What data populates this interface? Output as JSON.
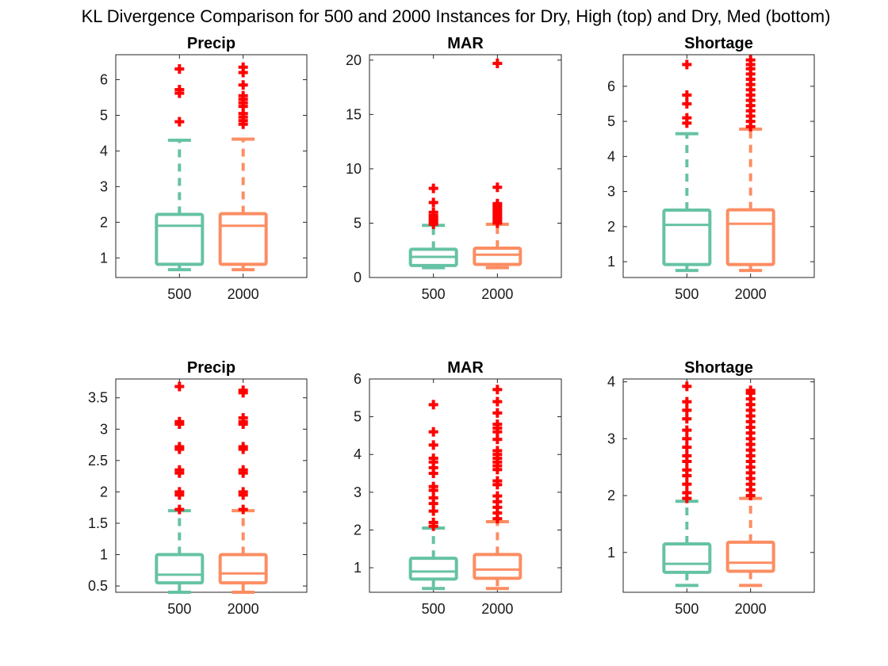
{
  "figure_title": "KL Divergence Comparison for 500 and 2000 Instances for Dry, High (top) and Dry, Med (bottom)",
  "colors": {
    "box_500": "#66c2a5",
    "box_2000": "#fc8d62",
    "outlier": "#ff0000",
    "axes": "#262626"
  },
  "chart_data": [
    {
      "type": "box",
      "title": "Precip",
      "categories": [
        "500",
        "2000"
      ],
      "ylim": [
        0.45,
        6.7
      ],
      "yticks": [
        1,
        2,
        3,
        4,
        5,
        6
      ],
      "series": [
        {
          "category": "500",
          "whisker_low": 0.67,
          "q1": 0.82,
          "median": 1.9,
          "q3": 2.22,
          "whisker_high": 4.3,
          "outliers": [
            4.82,
            5.62,
            5.72,
            6.3
          ]
        },
        {
          "category": "2000",
          "whisker_low": 0.67,
          "q1": 0.82,
          "median": 1.9,
          "q3": 2.24,
          "whisker_high": 4.33,
          "outliers": [
            4.75,
            4.85,
            4.95,
            5.05,
            5.25,
            5.35,
            5.45,
            5.55,
            5.85,
            6.2,
            6.35
          ]
        }
      ]
    },
    {
      "type": "box",
      "title": "MAR",
      "categories": [
        "500",
        "2000"
      ],
      "ylim": [
        0,
        20.5
      ],
      "yticks": [
        0,
        5,
        10,
        15,
        20
      ],
      "series": [
        {
          "category": "500",
          "whisker_low": 0.9,
          "q1": 1.1,
          "median": 1.9,
          "q3": 2.6,
          "whisker_high": 4.8,
          "outliers": [
            4.9,
            5.1,
            5.3,
            5.5,
            5.7,
            6.0,
            6.9,
            8.2
          ]
        },
        {
          "category": "2000",
          "whisker_low": 0.9,
          "q1": 1.2,
          "median": 2.1,
          "q3": 2.7,
          "whisker_high": 4.9,
          "outliers": [
            5.0,
            5.2,
            5.4,
            5.6,
            5.8,
            6.0,
            6.2,
            6.4,
            6.6,
            6.8,
            8.3,
            19.7
          ]
        }
      ]
    },
    {
      "type": "box",
      "title": "Shortage",
      "categories": [
        "500",
        "2000"
      ],
      "ylim": [
        0.55,
        6.9
      ],
      "yticks": [
        1,
        2,
        3,
        4,
        5,
        6
      ],
      "series": [
        {
          "category": "500",
          "whisker_low": 0.75,
          "q1": 0.92,
          "median": 2.05,
          "q3": 2.47,
          "whisker_high": 4.65,
          "outliers": [
            4.95,
            5.1,
            5.5,
            5.75,
            6.62
          ]
        },
        {
          "category": "2000",
          "whisker_low": 0.75,
          "q1": 0.92,
          "median": 2.08,
          "q3": 2.48,
          "whisker_high": 4.78,
          "outliers": [
            4.85,
            5.0,
            5.15,
            5.3,
            5.45,
            5.6,
            5.75,
            5.9,
            6.05,
            6.2,
            6.35,
            6.5,
            6.62,
            6.75
          ]
        }
      ]
    },
    {
      "type": "box",
      "title": "Precip",
      "categories": [
        "500",
        "2000"
      ],
      "ylim": [
        0.4,
        3.8
      ],
      "yticks": [
        0.5,
        1,
        1.5,
        2,
        2.5,
        3,
        3.5
      ],
      "series": [
        {
          "category": "500",
          "whisker_low": 0.4,
          "q1": 0.55,
          "median": 0.68,
          "q3": 1.0,
          "whisker_high": 1.7,
          "outliers": [
            1.72,
            1.95,
            2.0,
            2.3,
            2.35,
            2.68,
            2.72,
            3.08,
            3.12,
            3.68
          ]
        },
        {
          "category": "2000",
          "whisker_low": 0.4,
          "q1": 0.55,
          "median": 0.7,
          "q3": 1.0,
          "whisker_high": 1.7,
          "outliers": [
            1.72,
            1.95,
            2.0,
            2.3,
            2.35,
            2.68,
            2.72,
            3.08,
            3.12,
            3.18,
            3.58,
            3.62
          ]
        }
      ]
    },
    {
      "type": "box",
      "title": "MAR",
      "categories": [
        "500",
        "2000"
      ],
      "ylim": [
        0.35,
        6.0
      ],
      "yticks": [
        1,
        2,
        3,
        4,
        5,
        6
      ],
      "series": [
        {
          "category": "500",
          "whisker_low": 0.45,
          "q1": 0.7,
          "median": 0.9,
          "q3": 1.25,
          "whisker_high": 2.05,
          "outliers": [
            2.1,
            2.2,
            2.5,
            2.7,
            2.85,
            3.05,
            3.15,
            3.5,
            3.65,
            3.8,
            3.9,
            4.25,
            4.6,
            5.32
          ]
        },
        {
          "category": "2000",
          "whisker_low": 0.45,
          "q1": 0.72,
          "median": 0.95,
          "q3": 1.35,
          "whisker_high": 2.22,
          "outliers": [
            2.3,
            2.45,
            2.6,
            2.75,
            2.9,
            3.2,
            3.3,
            3.6,
            3.7,
            3.8,
            3.9,
            4.0,
            4.1,
            4.4,
            4.6,
            4.7,
            4.8,
            5.1,
            5.4,
            5.72
          ]
        }
      ]
    },
    {
      "type": "box",
      "title": "Shortage",
      "categories": [
        "500",
        "2000"
      ],
      "ylim": [
        0.3,
        4.05
      ],
      "yticks": [
        1,
        2,
        3,
        4
      ],
      "series": [
        {
          "category": "500",
          "whisker_low": 0.42,
          "q1": 0.65,
          "median": 0.8,
          "q3": 1.15,
          "whisker_high": 1.9,
          "outliers": [
            1.95,
            2.05,
            2.2,
            2.35,
            2.45,
            2.6,
            2.7,
            2.85,
            3.0,
            3.15,
            3.35,
            3.5,
            3.65,
            3.92
          ]
        },
        {
          "category": "2000",
          "whisker_low": 0.42,
          "q1": 0.67,
          "median": 0.82,
          "q3": 1.18,
          "whisker_high": 1.95,
          "outliers": [
            2.0,
            2.1,
            2.2,
            2.3,
            2.4,
            2.5,
            2.6,
            2.7,
            2.8,
            2.9,
            3.0,
            3.1,
            3.2,
            3.3,
            3.4,
            3.5,
            3.6,
            3.7,
            3.8,
            3.85
          ]
        }
      ]
    }
  ]
}
